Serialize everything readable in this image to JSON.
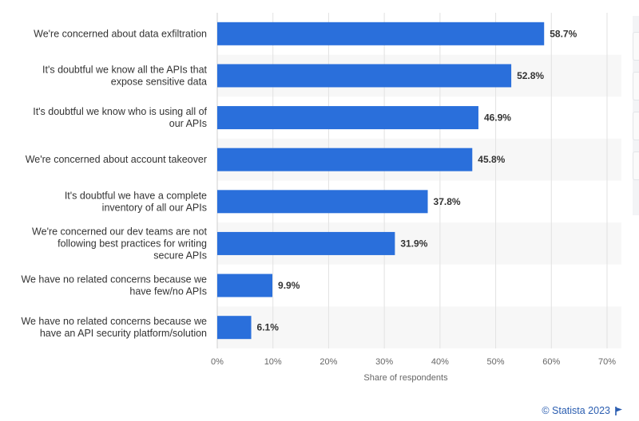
{
  "chart_data": {
    "type": "bar",
    "orientation": "horizontal",
    "categories": [
      [
        "We're concerned about data exfiltration"
      ],
      [
        "It's doubtful we know all the APIs that",
        "expose sensitive data"
      ],
      [
        "It's doubtful we know who is using all of",
        "our APIs"
      ],
      [
        "We're concerned about account takeover"
      ],
      [
        "It's doubtful we have a complete",
        "inventory of all our APIs"
      ],
      [
        "We're concerned our dev teams are not",
        "following best practices for writing",
        "secure APIs"
      ],
      [
        "We have no related concerns because we",
        "have few/no APIs"
      ],
      [
        "We have no related concerns because we",
        "have an API security platform/solution"
      ]
    ],
    "values": [
      58.7,
      52.8,
      46.9,
      45.8,
      37.8,
      31.9,
      9.9,
      6.1
    ],
    "value_labels": [
      "58.7%",
      "52.8%",
      "46.9%",
      "45.8%",
      "37.8%",
      "31.9%",
      "9.9%",
      "6.1%"
    ],
    "xlim": [
      0,
      70
    ],
    "xticks": [
      0,
      10,
      20,
      30,
      40,
      50,
      60,
      70
    ],
    "xtick_labels": [
      "0%",
      "10%",
      "20%",
      "30%",
      "40%",
      "50%",
      "60%",
      "70%"
    ],
    "xlabel": "Share of respondents",
    "ylabel": "",
    "grid": true,
    "bar_color": "#2a6fdb",
    "alt_row_color": "#f7f7f7"
  },
  "credit": "© Statista 2023",
  "credit_color": "#2a5db0"
}
